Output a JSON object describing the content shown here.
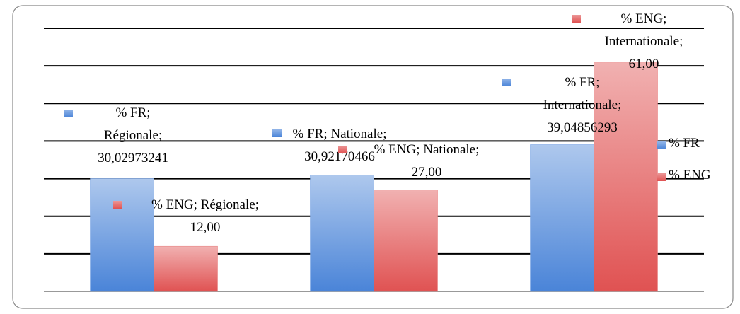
{
  "chart_data": {
    "type": "bar",
    "categories": [
      "Régionale",
      "Nationale",
      "Internationale"
    ],
    "series": [
      {
        "name": "% FR",
        "color": "#4a84d8",
        "values": [
          30.02973241,
          30.92170466,
          39.04856293
        ],
        "value_labels": [
          "% FR; Régionale; 30,02973241",
          "% FR; Nationale; 30,92170466",
          "% FR; Internationale; 39,04856293"
        ]
      },
      {
        "name": "% ENG",
        "color": "#e05252",
        "values": [
          12,
          27,
          61
        ],
        "value_labels": [
          "% ENG; Régionale; 12,00",
          "% ENG; Nationale; 27,00",
          "% ENG; Internationale; 61,00"
        ]
      }
    ],
    "ylim": [
      0,
      70
    ],
    "yticks": [
      0,
      10,
      20,
      30,
      40,
      50,
      60,
      70
    ],
    "grid": true,
    "legend": "right"
  }
}
